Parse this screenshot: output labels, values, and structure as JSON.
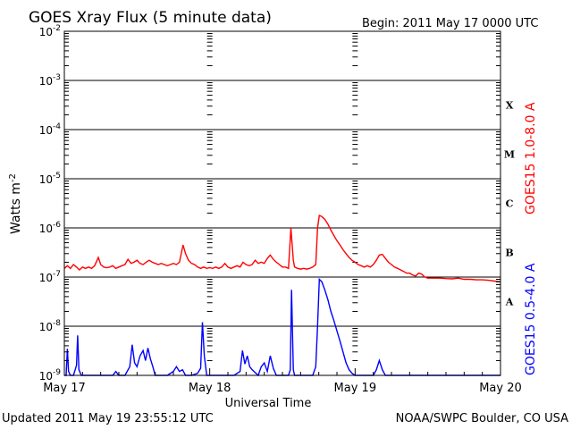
{
  "chart_data": {
    "type": "line",
    "title": "GOES Xray Flux (5 minute data)",
    "begin_label": "Begin:  2011 May 17 0000 UTC",
    "xlabel": "Universal Time",
    "ylabel_base": "Watts m",
    "ylabel_exp": "-2",
    "y_scale": "log",
    "ylim": [
      1e-09,
      0.01
    ],
    "xlim": [
      0,
      72
    ],
    "x_unit": "hours since 2011 May 17 00:00 UTC",
    "grid": true,
    "x_ticks": [
      {
        "t": 0,
        "label": "May 17"
      },
      {
        "t": 24,
        "label": "May 18"
      },
      {
        "t": 48,
        "label": "May 19"
      },
      {
        "t": 72,
        "label": "May 20"
      }
    ],
    "y_ticks": [
      {
        "exp": -9,
        "label": "10",
        "sup": "-9"
      },
      {
        "exp": -8,
        "label": "10",
        "sup": "-8"
      },
      {
        "exp": -7,
        "label": "10",
        "sup": "-7"
      },
      {
        "exp": -6,
        "label": "10",
        "sup": "-6"
      },
      {
        "exp": -5,
        "label": "10",
        "sup": "-5"
      },
      {
        "exp": -4,
        "label": "10",
        "sup": "-4"
      },
      {
        "exp": -3,
        "label": "10",
        "sup": "-3"
      },
      {
        "exp": -2,
        "label": "10",
        "sup": "-2"
      }
    ],
    "flare_classes": [
      {
        "label": "A",
        "exp": -7.5
      },
      {
        "label": "B",
        "exp": -6.5
      },
      {
        "label": "C",
        "exp": -5.5
      },
      {
        "label": "M",
        "exp": -4.5
      },
      {
        "label": "X",
        "exp": -3.5
      }
    ],
    "series": [
      {
        "name": "GOES15 1.0-8.0 A",
        "color": "#ff0000",
        "points": [
          [
            0,
            1.5e-07
          ],
          [
            0.5,
            1.7e-07
          ],
          [
            1,
            1.5e-07
          ],
          [
            1.5,
            1.8e-07
          ],
          [
            2,
            1.6e-07
          ],
          [
            2.5,
            1.4e-07
          ],
          [
            3,
            1.6e-07
          ],
          [
            3.5,
            1.5e-07
          ],
          [
            4,
            1.6e-07
          ],
          [
            4.5,
            1.5e-07
          ],
          [
            5,
            1.7e-07
          ],
          [
            5.6,
            2.5e-07
          ],
          [
            6,
            1.8e-07
          ],
          [
            6.5,
            1.6e-07
          ],
          [
            7,
            1.55e-07
          ],
          [
            7.5,
            1.6e-07
          ],
          [
            8,
            1.7e-07
          ],
          [
            8.5,
            1.5e-07
          ],
          [
            9,
            1.6e-07
          ],
          [
            9.5,
            1.7e-07
          ],
          [
            10,
            1.8e-07
          ],
          [
            10.5,
            2.3e-07
          ],
          [
            11,
            1.9e-07
          ],
          [
            11.5,
            2e-07
          ],
          [
            12,
            2.2e-07
          ],
          [
            12.5,
            1.9e-07
          ],
          [
            13,
            1.8e-07
          ],
          [
            13.5,
            2e-07
          ],
          [
            14,
            2.2e-07
          ],
          [
            14.5,
            2e-07
          ],
          [
            15,
            1.9e-07
          ],
          [
            15.5,
            1.8e-07
          ],
          [
            16,
            1.9e-07
          ],
          [
            16.5,
            1.8e-07
          ],
          [
            17,
            1.7e-07
          ],
          [
            17.5,
            1.8e-07
          ],
          [
            18,
            1.9e-07
          ],
          [
            18.5,
            1.8e-07
          ],
          [
            19,
            2e-07
          ],
          [
            19.6,
            4.5e-07
          ],
          [
            20,
            3e-07
          ],
          [
            20.5,
            2.2e-07
          ],
          [
            21,
            1.9e-07
          ],
          [
            21.5,
            1.8e-07
          ],
          [
            22,
            1.6e-07
          ],
          [
            22.5,
            1.5e-07
          ],
          [
            23,
            1.6e-07
          ],
          [
            23.5,
            1.5e-07
          ],
          [
            24,
            1.55e-07
          ],
          [
            24.5,
            1.5e-07
          ],
          [
            25,
            1.6e-07
          ],
          [
            25.5,
            1.5e-07
          ],
          [
            26,
            1.6e-07
          ],
          [
            26.5,
            1.9e-07
          ],
          [
            27,
            1.6e-07
          ],
          [
            27.5,
            1.5e-07
          ],
          [
            28,
            1.6e-07
          ],
          [
            28.5,
            1.7e-07
          ],
          [
            29,
            1.6e-07
          ],
          [
            29.5,
            2e-07
          ],
          [
            30,
            1.8e-07
          ],
          [
            30.5,
            1.7e-07
          ],
          [
            31,
            1.8e-07
          ],
          [
            31.5,
            2.2e-07
          ],
          [
            32,
            1.9e-07
          ],
          [
            32.5,
            2e-07
          ],
          [
            33,
            1.9e-07
          ],
          [
            33.5,
            2.4e-07
          ],
          [
            34,
            2.8e-07
          ],
          [
            34.5,
            2.3e-07
          ],
          [
            35,
            2e-07
          ],
          [
            35.5,
            1.8e-07
          ],
          [
            36,
            1.6e-07
          ],
          [
            36.5,
            1.6e-07
          ],
          [
            37,
            1.5e-07
          ],
          [
            37.4,
            1e-06
          ],
          [
            37.8,
            2.2e-07
          ],
          [
            38,
            1.6e-07
          ],
          [
            38.5,
            1.5e-07
          ],
          [
            39,
            1.45e-07
          ],
          [
            39.5,
            1.5e-07
          ],
          [
            40,
            1.45e-07
          ],
          [
            40.5,
            1.5e-07
          ],
          [
            41,
            1.6e-07
          ],
          [
            41.5,
            1.8e-07
          ],
          [
            41.8,
            1e-06
          ],
          [
            42.1,
            1.8e-06
          ],
          [
            42.5,
            1.7e-06
          ],
          [
            43,
            1.5e-06
          ],
          [
            43.5,
            1.2e-06
          ],
          [
            44,
            9e-07
          ],
          [
            44.5,
            7e-07
          ],
          [
            45,
            5.5e-07
          ],
          [
            45.5,
            4.5e-07
          ],
          [
            46,
            3.6e-07
          ],
          [
            46.5,
            3e-07
          ],
          [
            47,
            2.5e-07
          ],
          [
            47.5,
            2.2e-07
          ],
          [
            48,
            2e-07
          ],
          [
            48.5,
            1.8e-07
          ],
          [
            49,
            1.7e-07
          ],
          [
            49.5,
            1.6e-07
          ],
          [
            50,
            1.7e-07
          ],
          [
            50.5,
            1.6e-07
          ],
          [
            51,
            1.8e-07
          ],
          [
            51.5,
            2.2e-07
          ],
          [
            52,
            2.8e-07
          ],
          [
            52.5,
            2.9e-07
          ],
          [
            53,
            2.4e-07
          ],
          [
            53.5,
            2e-07
          ],
          [
            54,
            1.8e-07
          ],
          [
            54.5,
            1.6e-07
          ],
          [
            55,
            1.5e-07
          ],
          [
            55.5,
            1.4e-07
          ],
          [
            56,
            1.3e-07
          ],
          [
            56.5,
            1.2e-07
          ],
          [
            57,
            1.2e-07
          ],
          [
            57.5,
            1.1e-07
          ],
          [
            58,
            1.05e-07
          ],
          [
            58.5,
            1.2e-07
          ],
          [
            59,
            1.15e-07
          ],
          [
            59.5,
            1e-07
          ],
          [
            60,
            9.5e-08
          ],
          [
            61,
            9.5e-08
          ],
          [
            62,
            9.5e-08
          ],
          [
            63,
            9.3e-08
          ],
          [
            64,
            9.2e-08
          ],
          [
            65,
            9.5e-08
          ],
          [
            66,
            9e-08
          ],
          [
            67,
            9e-08
          ],
          [
            68,
            8.8e-08
          ],
          [
            69,
            8.8e-08
          ],
          [
            70,
            8.6e-08
          ],
          [
            71,
            8.3e-08
          ],
          [
            72,
            8e-08
          ]
        ]
      },
      {
        "name": "GOES15 0.5-4.0 A",
        "color": "#0000ff",
        "points": [
          [
            0,
            1e-09
          ],
          [
            0.3,
            1e-09
          ],
          [
            0.5,
            3.5e-09
          ],
          [
            0.7,
            1.2e-09
          ],
          [
            1,
            1e-09
          ],
          [
            1.5,
            1e-09
          ],
          [
            2,
            1.6e-09
          ],
          [
            2.2,
            6.5e-09
          ],
          [
            2.4,
            1.3e-09
          ],
          [
            2.8,
            1e-09
          ],
          [
            3.5,
            1e-09
          ],
          [
            4,
            1e-09
          ],
          [
            4.5,
            1e-09
          ],
          [
            5,
            1e-09
          ],
          [
            6,
            1e-09
          ],
          [
            7,
            1e-09
          ],
          [
            8,
            1e-09
          ],
          [
            8.5,
            1.2e-09
          ],
          [
            9,
            1e-09
          ],
          [
            10,
            1e-09
          ],
          [
            10.8,
            1.5e-09
          ],
          [
            11.2,
            4.2e-09
          ],
          [
            11.6,
            1.8e-09
          ],
          [
            12,
            1.5e-09
          ],
          [
            12.5,
            2.5e-09
          ],
          [
            13,
            3.2e-09
          ],
          [
            13.4,
            2e-09
          ],
          [
            13.8,
            3.6e-09
          ],
          [
            14.2,
            2.2e-09
          ],
          [
            14.6,
            1.5e-09
          ],
          [
            15,
            1e-09
          ],
          [
            16,
            1e-09
          ],
          [
            17,
            1e-09
          ],
          [
            18,
            1.2e-09
          ],
          [
            18.5,
            1.5e-09
          ],
          [
            19,
            1.2e-09
          ],
          [
            19.5,
            1.3e-09
          ],
          [
            20,
            1e-09
          ],
          [
            21,
            1e-09
          ],
          [
            22,
            1.1e-09
          ],
          [
            22.5,
            1.4e-09
          ],
          [
            22.8,
            1.2e-08
          ],
          [
            23.1,
            2.5e-09
          ],
          [
            23.5,
            1e-09
          ],
          [
            24,
            1e-09
          ],
          [
            25,
            1e-09
          ],
          [
            26,
            1e-09
          ],
          [
            27,
            1e-09
          ],
          [
            28,
            1e-09
          ],
          [
            29,
            1.2e-09
          ],
          [
            29.4,
            3.2e-09
          ],
          [
            29.8,
            1.7e-09
          ],
          [
            30.2,
            2.5e-09
          ],
          [
            30.6,
            1.5e-09
          ],
          [
            31,
            1.3e-09
          ],
          [
            32,
            1e-09
          ],
          [
            32.5,
            1.5e-09
          ],
          [
            33,
            1.8e-09
          ],
          [
            33.5,
            1.2e-09
          ],
          [
            34,
            2.5e-09
          ],
          [
            34.5,
            1.4e-09
          ],
          [
            35,
            1e-09
          ],
          [
            36,
            1e-09
          ],
          [
            37,
            1e-09
          ],
          [
            37.3,
            1.3e-09
          ],
          [
            37.5,
            5.5e-08
          ],
          [
            37.8,
            1.3e-09
          ],
          [
            38,
            1e-09
          ],
          [
            39,
            1e-09
          ],
          [
            40,
            1e-09
          ],
          [
            41,
            1e-09
          ],
          [
            41.5,
            1.5e-09
          ],
          [
            41.8,
            1e-08
          ],
          [
            42.1,
            9e-08
          ],
          [
            42.5,
            8e-08
          ],
          [
            43,
            5.5e-08
          ],
          [
            43.5,
            3.5e-08
          ],
          [
            44,
            2e-08
          ],
          [
            44.5,
            1.3e-08
          ],
          [
            45,
            8e-09
          ],
          [
            45.5,
            5e-09
          ],
          [
            46,
            3e-09
          ],
          [
            46.5,
            1.8e-09
          ],
          [
            47,
            1.3e-09
          ],
          [
            47.5,
            1.1e-09
          ],
          [
            48,
            1e-09
          ],
          [
            49,
            1e-09
          ],
          [
            50,
            1e-09
          ],
          [
            51,
            1e-09
          ],
          [
            51.5,
            1.3e-09
          ],
          [
            52,
            2e-09
          ],
          [
            52.5,
            1.3e-09
          ],
          [
            53,
            1e-09
          ],
          [
            54,
            1e-09
          ],
          [
            55,
            1e-09
          ],
          [
            56,
            1e-09
          ],
          [
            57,
            1e-09
          ],
          [
            58,
            1e-09
          ],
          [
            59,
            1e-09
          ],
          [
            60,
            1e-09
          ],
          [
            62,
            1e-09
          ],
          [
            64,
            1e-09
          ],
          [
            66,
            1e-09
          ],
          [
            68,
            1e-09
          ],
          [
            70,
            1e-09
          ],
          [
            72,
            1e-09
          ]
        ]
      }
    ]
  },
  "footer": {
    "updated": "Updated 2011 May 19 23:55:12 UTC",
    "credit": "NOAA/SWPC Boulder, CO USA"
  }
}
